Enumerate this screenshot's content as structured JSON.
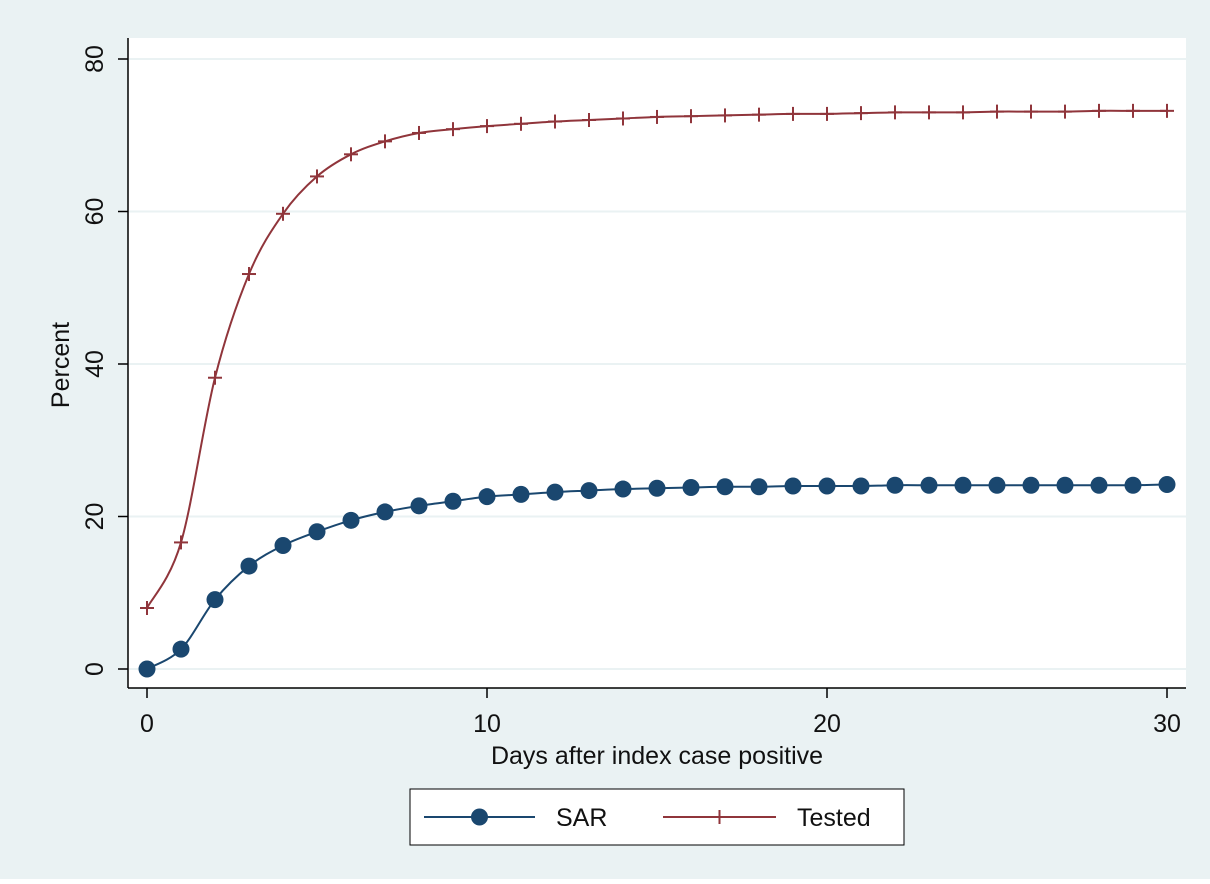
{
  "colors": {
    "outer_background": "#eaf2f3",
    "plot_background": "#ffffff",
    "gridline": "#eaf2f3",
    "axis": "#000000",
    "sar": "#1a476f",
    "tested": "#90353b"
  },
  "chart_data": {
    "type": "line",
    "title": "",
    "xlabel": "Days after index case positive",
    "ylabel": "Percent",
    "xlim": [
      0,
      30
    ],
    "ylim": [
      0,
      80
    ],
    "x_ticks": [
      0,
      10,
      20,
      30
    ],
    "y_ticks": [
      0,
      20,
      40,
      60,
      80
    ],
    "grid": true,
    "legend_position": "bottom",
    "x": [
      0,
      1,
      2,
      3,
      4,
      5,
      6,
      7,
      8,
      9,
      10,
      11,
      12,
      13,
      14,
      15,
      16,
      17,
      18,
      19,
      20,
      21,
      22,
      23,
      24,
      25,
      26,
      27,
      28,
      29,
      30
    ],
    "series": [
      {
        "name": "SAR",
        "marker": "circle",
        "color": "#1a476f",
        "values": [
          0,
          2.6,
          9.1,
          13.5,
          16.2,
          18.0,
          19.5,
          20.6,
          21.4,
          22.0,
          22.6,
          22.9,
          23.2,
          23.4,
          23.6,
          23.7,
          23.8,
          23.9,
          23.9,
          24.0,
          24.0,
          24.0,
          24.1,
          24.1,
          24.1,
          24.1,
          24.1,
          24.1,
          24.1,
          24.1,
          24.2
        ]
      },
      {
        "name": "Tested",
        "marker": "plus",
        "color": "#90353b",
        "values": [
          8.0,
          16.6,
          38.2,
          51.8,
          59.7,
          64.6,
          67.5,
          69.2,
          70.3,
          70.8,
          71.2,
          71.5,
          71.8,
          72.0,
          72.2,
          72.4,
          72.5,
          72.6,
          72.7,
          72.8,
          72.8,
          72.9,
          73.0,
          73.0,
          73.0,
          73.1,
          73.1,
          73.1,
          73.2,
          73.2,
          73.2
        ]
      }
    ]
  }
}
